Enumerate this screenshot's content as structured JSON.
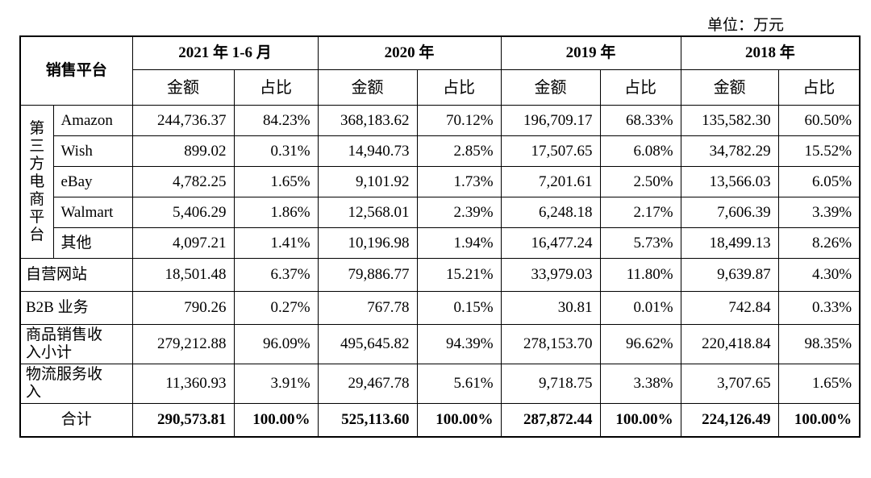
{
  "unit_label": "单位：万元",
  "header": {
    "platform": "销售平台",
    "periods": [
      "2021 年 1-6 月",
      "2020 年",
      "2019 年",
      "2018 年"
    ],
    "amount": "金额",
    "ratio": "占比"
  },
  "group_label": [
    "第",
    "三",
    "方",
    "电",
    "商",
    "平",
    "台"
  ],
  "third_party_rows": [
    {
      "name": "Amazon",
      "values": [
        "244,736.37",
        "84.23%",
        "368,183.62",
        "70.12%",
        "196,709.17",
        "68.33%",
        "135,582.30",
        "60.50%"
      ]
    },
    {
      "name": "Wish",
      "values": [
        "899.02",
        "0.31%",
        "14,940.73",
        "2.85%",
        "17,507.65",
        "6.08%",
        "34,782.29",
        "15.52%"
      ]
    },
    {
      "name": "eBay",
      "values": [
        "4,782.25",
        "1.65%",
        "9,101.92",
        "1.73%",
        "7,201.61",
        "2.50%",
        "13,566.03",
        "6.05%"
      ]
    },
    {
      "name": "Walmart",
      "values": [
        "5,406.29",
        "1.86%",
        "12,568.01",
        "2.39%",
        "6,248.18",
        "2.17%",
        "7,606.39",
        "3.39%"
      ]
    },
    {
      "name": "其他",
      "values": [
        "4,097.21",
        "1.41%",
        "10,196.98",
        "1.94%",
        "16,477.24",
        "5.73%",
        "18,499.13",
        "8.26%"
      ]
    }
  ],
  "other_rows": [
    {
      "name": "自营网站",
      "values": [
        "18,501.48",
        "6.37%",
        "79,886.77",
        "15.21%",
        "33,979.03",
        "11.80%",
        "9,639.87",
        "4.30%"
      ]
    },
    {
      "name": "B2B 业务",
      "values": [
        "790.26",
        "0.27%",
        "767.78",
        "0.15%",
        "30.81",
        "0.01%",
        "742.84",
        "0.33%"
      ]
    },
    {
      "name": "商品销售收入小计",
      "values": [
        "279,212.88",
        "96.09%",
        "495,645.82",
        "94.39%",
        "278,153.70",
        "96.62%",
        "220,418.84",
        "98.35%"
      ]
    },
    {
      "name": "物流服务收入",
      "values": [
        "11,360.93",
        "3.91%",
        "29,467.78",
        "5.61%",
        "9,718.75",
        "3.38%",
        "3,707.65",
        "1.65%"
      ]
    }
  ],
  "total_row": {
    "name": "合计",
    "values": [
      "290,573.81",
      "100.00%",
      "525,113.60",
      "100.00%",
      "287,872.44",
      "100.00%",
      "224,126.49",
      "100.00%"
    ]
  }
}
